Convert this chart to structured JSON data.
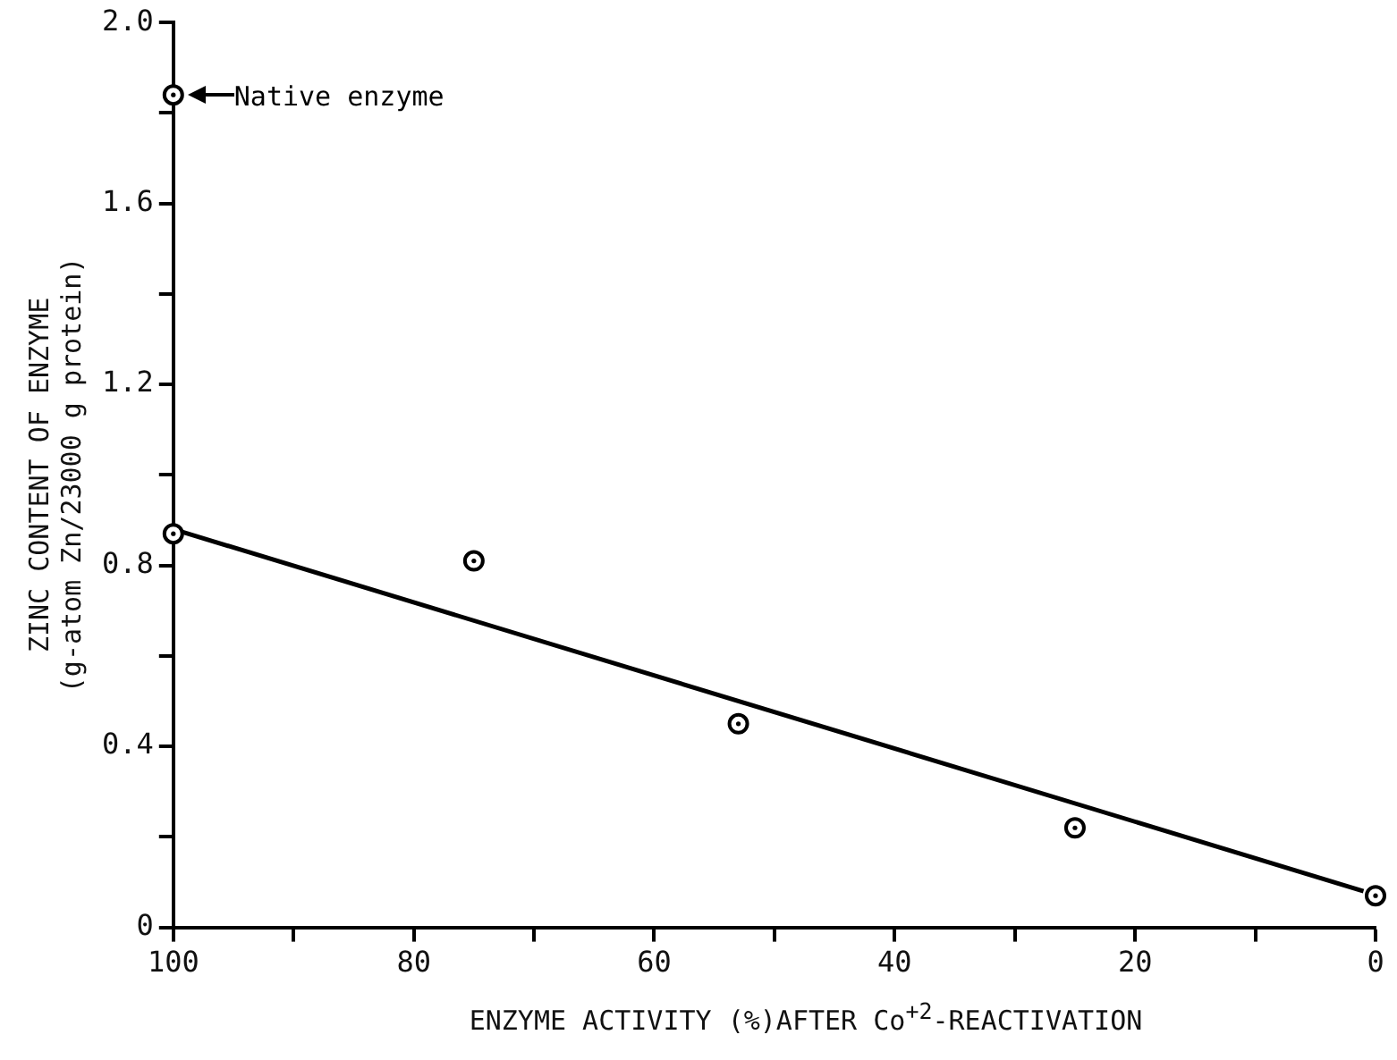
{
  "chart_data": {
    "type": "scatter",
    "xlabel": "ENZYME ACTIVITY (%)AFTER Co$^{+2}$-REACTIVATION",
    "ylabel": "ZINC CONTENT OF ENZYME\n(g-atom Zn/23000 g protein)",
    "series": [
      {
        "color": "#000000",
        "marker": "circle",
        "x": [
          100,
          100,
          75,
          53,
          25,
          0
        ],
        "values": [
          1.84,
          0.87,
          0.81,
          0.45,
          0.22,
          0.07
        ]
      },
      {
        "type": "line",
        "color": "#000000",
        "x": [
          100,
          1
        ],
        "values": [
          0.88,
          0.08
        ]
      }
    ],
    "xlim": [
      100,
      0
    ],
    "xticks": [
      100,
      {
        "value": 90,
        "label": null
      },
      80,
      {
        "value": 70,
        "label": null
      },
      60,
      {
        "value": 50,
        "label": null
      },
      40,
      {
        "value": 30,
        "label": null
      },
      20,
      {
        "value": 10,
        "label": null
      },
      0
    ],
    "ylim": [
      0,
      2.0
    ],
    "yticks": [
      0,
      {
        "value": 0.2,
        "label": null
      },
      0.4,
      {
        "value": 0.6,
        "label": null
      },
      0.8,
      {
        "value": 1.0,
        "label": null
      },
      1.2,
      {
        "value": 1.4,
        "label": null
      },
      1.6,
      {
        "value": 1.8,
        "label": null
      },
      {
        "value": 2.0,
        "label": "2.0"
      }
    ],
    "annotations": [
      {
        "text": "Native enzyme",
        "x": 100,
        "y": 1.84
      }
    ],
    "grid": false,
    "legend": false
  }
}
